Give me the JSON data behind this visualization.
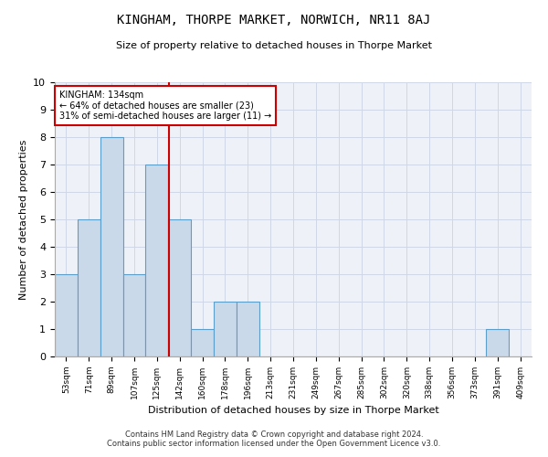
{
  "title": "KINGHAM, THORPE MARKET, NORWICH, NR11 8AJ",
  "subtitle": "Size of property relative to detached houses in Thorpe Market",
  "xlabel": "Distribution of detached houses by size in Thorpe Market",
  "ylabel": "Number of detached properties",
  "categories": [
    "53sqm",
    "71sqm",
    "89sqm",
    "107sqm",
    "125sqm",
    "142sqm",
    "160sqm",
    "178sqm",
    "196sqm",
    "213sqm",
    "231sqm",
    "249sqm",
    "267sqm",
    "285sqm",
    "302sqm",
    "320sqm",
    "338sqm",
    "356sqm",
    "373sqm",
    "391sqm",
    "409sqm"
  ],
  "values": [
    3,
    5,
    8,
    3,
    7,
    5,
    1,
    2,
    2,
    0,
    0,
    0,
    0,
    0,
    0,
    0,
    0,
    0,
    0,
    1,
    0
  ],
  "bar_color": "#c9d9ea",
  "bar_edge_color": "#5a9ec9",
  "highlight_label": "KINGHAM: 134sqm",
  "highlight_line1": "← 64% of detached houses are smaller (23)",
  "highlight_line2": "31% of semi-detached houses are larger (11) →",
  "annotation_box_color": "#ffffff",
  "annotation_box_edge": "#cc0000",
  "ylim": [
    0,
    10
  ],
  "yticks": [
    0,
    1,
    2,
    3,
    4,
    5,
    6,
    7,
    8,
    9,
    10
  ],
  "grid_color": "#d0d8e8",
  "bg_color": "#eef2f8",
  "red_line_color": "#cc0000",
  "footer_line1": "Contains HM Land Registry data © Crown copyright and database right 2024.",
  "footer_line2": "Contains public sector information licensed under the Open Government Licence v3.0."
}
